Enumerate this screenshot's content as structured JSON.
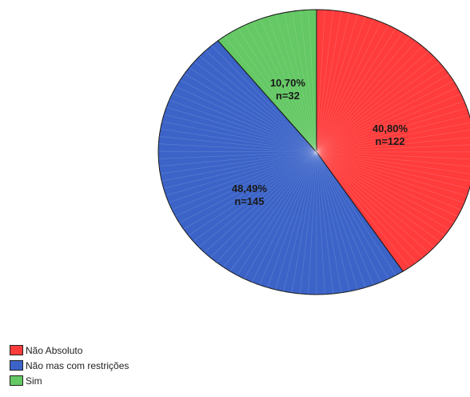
{
  "chart_data": {
    "type": "pie",
    "title": "",
    "categories": [
      "Não Absoluto",
      "Não mas com restrições",
      "Sim"
    ],
    "values": [
      40.8,
      48.49,
      10.7
    ],
    "counts": [
      122,
      145,
      32
    ],
    "labels": [
      {
        "pct": "40,80%",
        "n": "n=122"
      },
      {
        "pct": "48,49%",
        "n": "n=145"
      },
      {
        "pct": "10,70%",
        "n": "n=32"
      }
    ],
    "colors": [
      "#fe3c3c",
      "#3c64c8",
      "#64c864"
    ],
    "start_angle_deg": 0,
    "direction": "clockwise",
    "legend_placement": "bottom-left"
  },
  "legend": {
    "items": [
      {
        "label": "Não Absoluto",
        "color": "#fe3c3c"
      },
      {
        "label": "Não mas com restrições",
        "color": "#3c64c8"
      },
      {
        "label": "Sim",
        "color": "#64c864"
      }
    ]
  }
}
